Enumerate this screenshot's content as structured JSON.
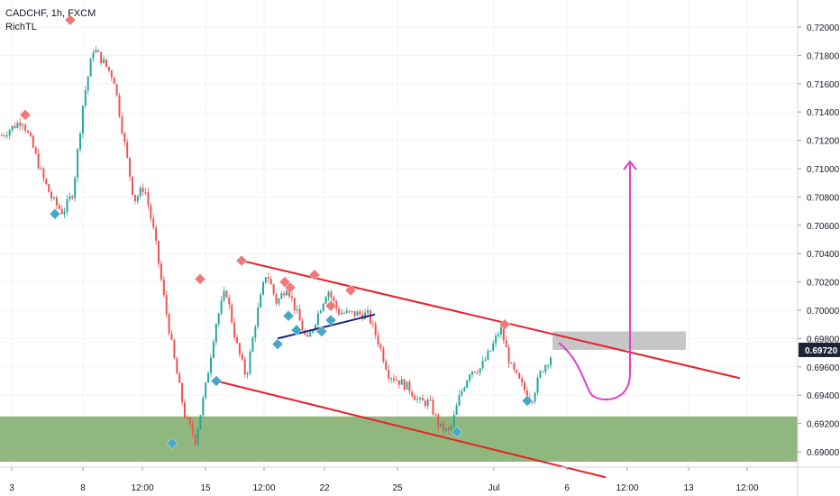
{
  "header": {
    "symbol_line": "CADCHF, 1h, FXCM",
    "indicator": "RichTL"
  },
  "colors": {
    "candle_up": "#26a69a",
    "candle_down": "#ef5350",
    "channel": "#e8202a",
    "mini_trend": "#1a237e",
    "projection": "#e040c8",
    "support_zone": "#8fb77e",
    "resistance_zone": "#c6c6c6",
    "swing_high_marker": "#f07878",
    "swing_low_marker": "#4aa6c8",
    "price_label_bg": "#1e2433"
  },
  "chart_data": {
    "type": "candlestick",
    "instrument": "CADCHF",
    "timeframe": "1h",
    "source": "FXCM",
    "x_ticks": [
      "3",
      "8",
      "12:00",
      "15",
      "12:00",
      "22",
      "25",
      "Jul",
      "6",
      "12:00",
      "13",
      "12:00"
    ],
    "y_ticks": [
      "0.72000",
      "0.71800",
      "0.71600",
      "0.71400",
      "0.71200",
      "0.71000",
      "0.70800",
      "0.70600",
      "0.70400",
      "0.70200",
      "0.70000",
      "0.69800",
      "0.69600",
      "0.69400",
      "0.69200",
      "0.69000"
    ],
    "ylim": [
      0.689,
      0.7228
    ],
    "last_price": "0.69720",
    "price_path": [
      [
        0.7125,
        0.7122
      ],
      [
        0.7128,
        0.713
      ],
      [
        0.7132,
        0.7137
      ],
      [
        0.7118,
        0.7115
      ],
      [
        0.7098,
        0.709
      ],
      [
        0.708,
        0.7075
      ],
      [
        0.7068,
        0.707
      ],
      [
        0.7077,
        0.709
      ],
      [
        0.7115,
        0.718
      ],
      [
        0.717,
        0.72
      ],
      [
        0.7185,
        0.7165
      ],
      [
        0.7168,
        0.716
      ],
      [
        0.714,
        0.71
      ],
      [
        0.7085,
        0.707
      ],
      [
        0.709,
        0.7085
      ],
      [
        0.7065,
        0.704
      ],
      [
        0.702,
        0.699
      ],
      [
        0.6975,
        0.695
      ],
      [
        0.6935,
        0.6915
      ],
      [
        0.6912,
        0.6905
      ],
      [
        0.693,
        0.696
      ],
      [
        0.698,
        0.7
      ],
      [
        0.701,
        0.702
      ],
      [
        0.6985,
        0.697
      ],
      [
        0.6955,
        0.695
      ],
      [
        0.698,
        0.701
      ],
      [
        0.702,
        0.7035
      ],
      [
        0.7015,
        0.6995
      ],
      [
        0.701,
        0.7025
      ],
      [
        0.7005,
        0.699
      ],
      [
        0.698,
        0.6975
      ],
      [
        0.6998,
        0.6995
      ],
      [
        0.7005,
        0.7025
      ],
      [
        0.701,
        0.6988
      ],
      [
        0.6995,
        0.7
      ],
      [
        0.6985,
        0.701
      ],
      [
        0.6998,
        0.6995
      ],
      [
        0.698,
        0.6975
      ],
      [
        0.696,
        0.695
      ],
      [
        0.6955,
        0.6945
      ],
      [
        0.695,
        0.694
      ],
      [
        0.6935,
        0.6935
      ],
      [
        0.694,
        0.693
      ],
      [
        0.692,
        0.6915
      ],
      [
        0.6912,
        0.6915
      ],
      [
        0.693,
        0.695
      ],
      [
        0.6955,
        0.696
      ],
      [
        0.6958,
        0.696
      ],
      [
        0.6965,
        0.6978
      ],
      [
        0.699,
        0.6985
      ],
      [
        0.6965,
        0.6955
      ],
      [
        0.695,
        0.6945
      ],
      [
        0.6935,
        0.6938
      ],
      [
        0.6955,
        0.696
      ],
      [
        0.6965,
        0.6972
      ]
    ],
    "swing_highs": [
      [
        28,
        0.7138
      ],
      [
        78,
        0.7205
      ],
      [
        222,
        0.7022
      ],
      [
        268,
        0.7035
      ],
      [
        316,
        0.702
      ],
      [
        322,
        0.7016
      ],
      [
        349,
        0.7025
      ],
      [
        367,
        0.7003
      ],
      [
        389,
        0.7014
      ],
      [
        560,
        0.699
      ]
    ],
    "swing_lows": [
      [
        61,
        0.7068
      ],
      [
        191,
        0.6906
      ],
      [
        240,
        0.695
      ],
      [
        308,
        0.6976
      ],
      [
        320,
        0.6996
      ],
      [
        329,
        0.6986
      ],
      [
        357,
        0.6985
      ],
      [
        367,
        0.6993
      ],
      [
        507,
        0.6914
      ],
      [
        585,
        0.6936
      ]
    ],
    "channel_upper": [
      [
        268,
        0.7035
      ],
      [
        821,
        0.6952
      ]
    ],
    "channel_lower": [
      [
        240,
        0.695
      ],
      [
        672,
        0.6882
      ]
    ],
    "mini_trendline": [
      [
        308,
        0.698
      ],
      [
        416,
        0.6997
      ]
    ],
    "support_zone": [
      0.6893,
      0.6925
    ],
    "resistance_zone": {
      "x_from": 613,
      "x_to": 761,
      "from": 0.6972,
      "to": 0.6985
    },
    "projection_path": [
      [
        620,
        0.6977
      ],
      [
        648,
        0.6963
      ],
      [
        660,
        0.694
      ],
      [
        685,
        0.694
      ],
      [
        699,
        0.6955
      ],
      [
        699,
        0.7105
      ]
    ]
  }
}
